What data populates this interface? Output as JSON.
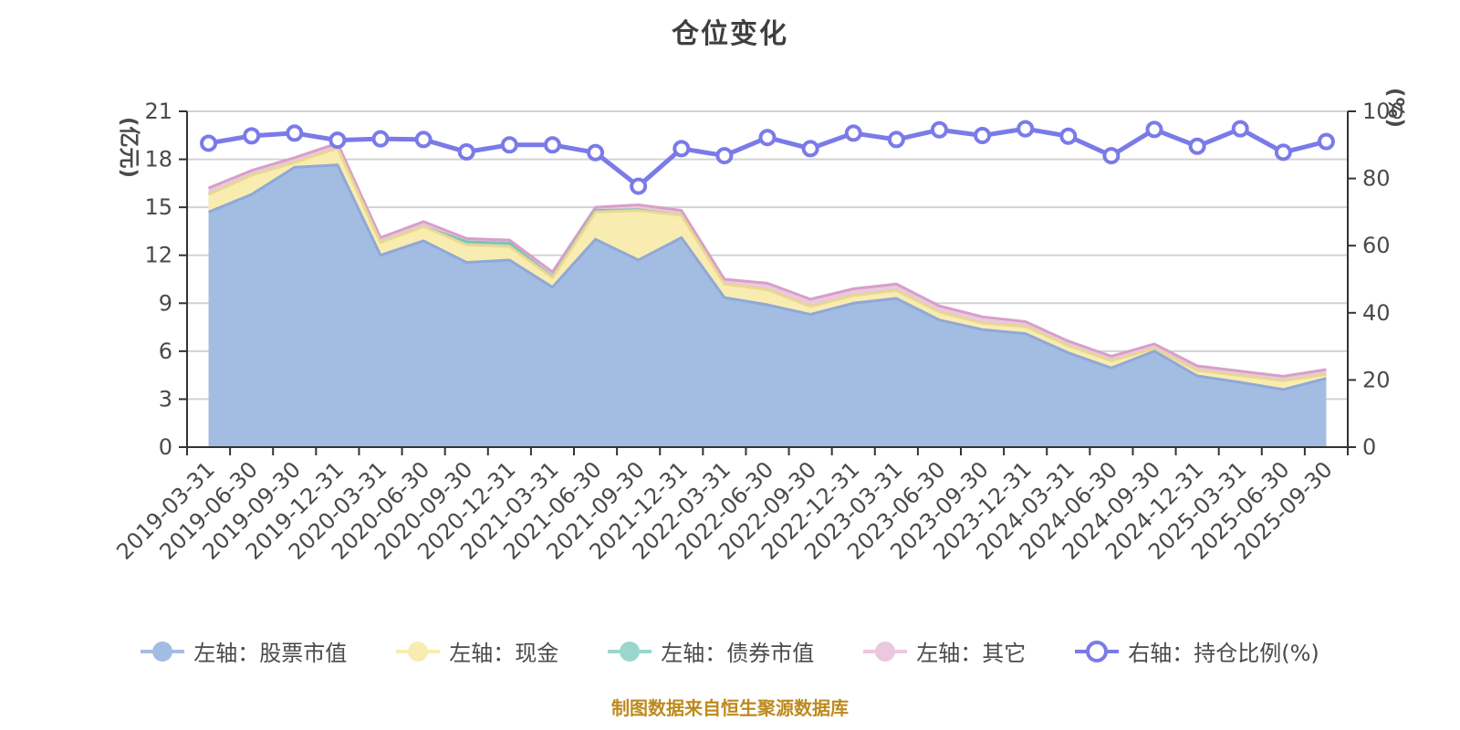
{
  "title": "仓位变化",
  "footnote": "制图数据来自恒生聚源数据库",
  "left_axis": {
    "name": "(亿元)",
    "min": 0,
    "max": 21,
    "ticks": [
      0,
      3,
      6,
      9,
      12,
      15,
      18,
      21
    ],
    "name_color": "#e60000"
  },
  "right_axis": {
    "name": "(%)",
    "min": 0,
    "max": 100,
    "ticks": [
      0,
      20,
      40,
      60,
      80,
      100
    ],
    "name_color": "#e60000"
  },
  "colors": {
    "stock_area": "#a3bce2",
    "cash_area": "#f8ecb0",
    "bond_area": "#9ad6ce",
    "other_area": "#ebc8e0",
    "ratio_line": "#7a7ae8",
    "grid": "#d3d3d3",
    "axis": "#333333",
    "label": "#4a4a4a",
    "title": "#3f3f3f",
    "footnote": "#bd8a1e"
  },
  "chart_data": {
    "type": "area",
    "stacked": true,
    "grid": true,
    "legend_position": "bottom",
    "title": "仓位变化",
    "categories": [
      "2019-03-31",
      "2019-06-30",
      "2019-09-30",
      "2019-12-31",
      "2020-03-31",
      "2020-06-30",
      "2020-09-30",
      "2020-12-31",
      "2021-03-31",
      "2021-06-30",
      "2021-09-30",
      "2021-12-31",
      "2022-03-31",
      "2022-06-30",
      "2022-09-30",
      "2022-12-31",
      "2023-03-31",
      "2023-06-30",
      "2023-09-30",
      "2023-12-31",
      "2024-03-31",
      "2024-06-30",
      "2024-09-30",
      "2024-12-31",
      "2025-03-31",
      "2025-06-30",
      "2025-09-30"
    ],
    "series": [
      {
        "key": "stock",
        "name": "左轴：股票市值",
        "axis": "left",
        "stype": "area",
        "color": "#a3bce2",
        "stroke": "#8fa8d8",
        "values": [
          14.7,
          15.8,
          17.5,
          17.65,
          12.0,
          12.9,
          11.55,
          11.7,
          10.0,
          13.0,
          11.7,
          13.1,
          9.35,
          8.9,
          8.3,
          9.0,
          9.3,
          7.95,
          7.35,
          7.1,
          5.9,
          4.95,
          6.0,
          4.45,
          4.05,
          3.6,
          4.3
        ]
      },
      {
        "key": "cash",
        "name": "左轴：现金",
        "axis": "left",
        "stype": "area",
        "color": "#f8ecb0",
        "stroke": "#ead791",
        "values": [
          1.1,
          1.2,
          0.3,
          1.05,
          0.8,
          0.9,
          1.1,
          0.85,
          0.6,
          1.7,
          3.1,
          1.4,
          0.85,
          0.95,
          0.5,
          0.48,
          0.5,
          0.5,
          0.4,
          0.45,
          0.45,
          0.45,
          0.15,
          0.35,
          0.42,
          0.55,
          0.25
        ]
      },
      {
        "key": "bond",
        "name": "左轴：债券市值",
        "axis": "left",
        "stype": "area",
        "color": "#9ad6ce",
        "stroke": "#7cc4ba",
        "values": [
          0,
          0,
          0,
          0,
          0,
          0,
          0.2,
          0.2,
          0.05,
          0.1,
          0.05,
          0,
          0,
          0,
          0,
          0,
          0,
          0,
          0,
          0,
          0,
          0,
          0,
          0,
          0,
          0,
          0
        ]
      },
      {
        "key": "other",
        "name": "左轴：其它",
        "axis": "left",
        "stype": "area",
        "color": "#ebc8e0",
        "stroke": "#d89fc8",
        "values": [
          0.4,
          0.3,
          0.3,
          0.3,
          0.3,
          0.3,
          0.2,
          0.2,
          0.3,
          0.2,
          0.3,
          0.3,
          0.3,
          0.4,
          0.45,
          0.42,
          0.4,
          0.38,
          0.4,
          0.3,
          0.28,
          0.28,
          0.3,
          0.28,
          0.28,
          0.28,
          0.3
        ]
      },
      {
        "key": "ratio",
        "name": "右轴：持仓比例(%)",
        "axis": "right",
        "stype": "line",
        "color": "#7a7ae8",
        "stroke": "#7a7ae8",
        "values": [
          90.5,
          92.7,
          93.5,
          91.4,
          91.8,
          91.6,
          87.9,
          90.0,
          90.0,
          87.7,
          77.7,
          88.9,
          86.8,
          92.2,
          88.9,
          93.5,
          91.6,
          94.5,
          92.8,
          94.8,
          92.6,
          86.8,
          94.6,
          89.6,
          94.8,
          87.8,
          91.0
        ]
      }
    ]
  }
}
